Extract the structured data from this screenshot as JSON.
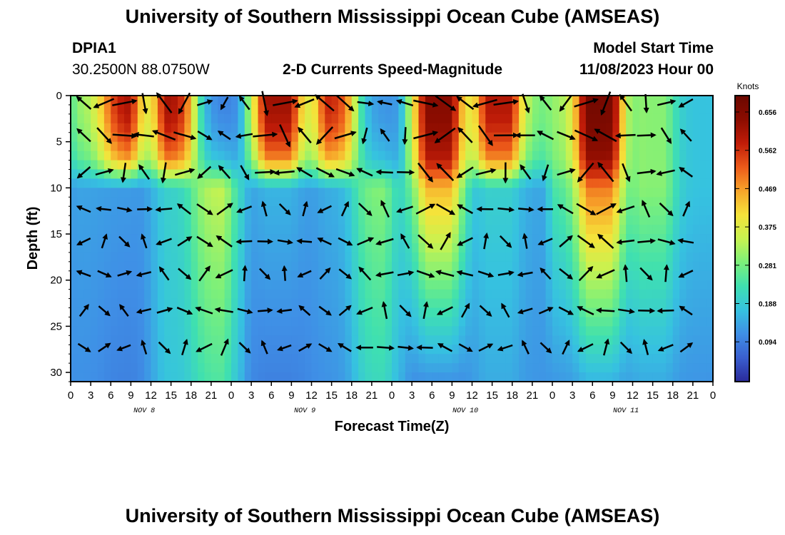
{
  "page": {
    "title": "University of Southern Mississippi Ocean Cube (AMSEAS)",
    "title_repeat": "University of Southern Mississippi Ocean Cube (AMSEAS)",
    "station": "DPIA1",
    "location": "30.2500N  88.0750W",
    "subtitle": "2-D Currents Speed-Magnitude",
    "start_label": "Model Start Time",
    "start_value": "11/08/2023 Hour 00"
  },
  "chart_data": {
    "type": "heatmap",
    "title": "2-D Currents Speed-Magnitude",
    "xlabel": "Forecast Time(Z)",
    "ylabel": "Depth (ft)",
    "x_range_hours": [
      0,
      96
    ],
    "ylim": [
      0,
      31
    ],
    "y_ticks": [
      0,
      5,
      10,
      15,
      20,
      25,
      30
    ],
    "x_tick_labels": [
      "0",
      "3",
      "6",
      "9",
      "12",
      "15",
      "18",
      "21",
      "0",
      "3",
      "6",
      "9",
      "12",
      "15",
      "18",
      "21",
      "0",
      "3",
      "6",
      "9",
      "12",
      "15",
      "18",
      "21",
      "0",
      "3",
      "6",
      "9",
      "12",
      "15",
      "18",
      "21",
      "0"
    ],
    "day_labels": [
      "NOV 8",
      "NOV 9",
      "NOV 10",
      "NOV 11"
    ],
    "colorbar": {
      "units": "Knots",
      "ticks": [
        "0.656",
        "0.562",
        "0.469",
        "0.375",
        "0.281",
        "0.188",
        "0.094"
      ],
      "colors": [
        "#2a2a9a",
        "#3a5fd0",
        "#3f8fe6",
        "#36c2e0",
        "#3fe0b0",
        "#7cf07a",
        "#c8f250",
        "#f5e33a",
        "#f7a52a",
        "#ec5a1a",
        "#c01c08",
        "#8b0c00",
        "#6b0800"
      ]
    },
    "approx_speed_columns_knots": [
      {
        "hour": 3,
        "surface": 0.3,
        "mid": 0.14,
        "deep": 0.12
      },
      {
        "hour": 7,
        "surface": 0.62,
        "mid": 0.13,
        "deep": 0.1
      },
      {
        "hour": 16,
        "surface": 0.62,
        "mid": 0.2,
        "deep": 0.18
      },
      {
        "hour": 21,
        "surface": 0.1,
        "mid": 0.35,
        "deep": 0.25
      },
      {
        "hour": 31,
        "surface": 0.62,
        "mid": 0.16,
        "deep": 0.1
      },
      {
        "hour": 40,
        "surface": 0.58,
        "mid": 0.15,
        "deep": 0.12
      },
      {
        "hour": 45,
        "surface": 0.12,
        "mid": 0.3,
        "deep": 0.22
      },
      {
        "hour": 55,
        "surface": 0.65,
        "mid": 0.45,
        "deep": 0.12
      },
      {
        "hour": 64,
        "surface": 0.6,
        "mid": 0.2,
        "deep": 0.15
      },
      {
        "hour": 79,
        "surface": 0.68,
        "mid": 0.5,
        "deep": 0.16
      },
      {
        "hour": 87,
        "surface": 0.3,
        "mid": 0.3,
        "deep": 0.15
      }
    ]
  }
}
